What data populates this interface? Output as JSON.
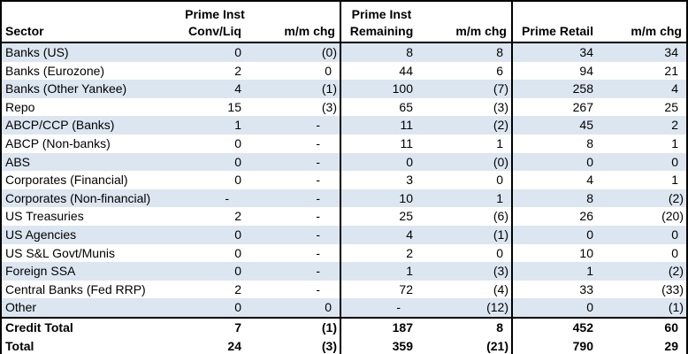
{
  "colors": {
    "row_stripe": "#dce6f1",
    "border": "#000000",
    "text": "#000000"
  },
  "table": {
    "columns": [
      {
        "line1": "",
        "line2": "Sector"
      },
      {
        "line1": "Prime Inst",
        "line2": "Conv/Liq"
      },
      {
        "line1": "",
        "line2": "m/m chg"
      },
      {
        "line1": "Prime Inst",
        "line2": "Remaining"
      },
      {
        "line1": "",
        "line2": "m/m chg"
      },
      {
        "line1": "",
        "line2": "Prime Retail"
      },
      {
        "line1": "",
        "line2": "m/m chg"
      }
    ],
    "rows": [
      {
        "sector": "Banks (US)",
        "values": [
          "0",
          "(0)",
          "8",
          "8",
          "34",
          "34"
        ]
      },
      {
        "sector": "Banks (Eurozone)",
        "values": [
          "2",
          "0",
          "44",
          "6",
          "94",
          "21"
        ]
      },
      {
        "sector": "Banks (Other Yankee)",
        "values": [
          "4",
          "(1)",
          "100",
          "(7)",
          "258",
          "4"
        ]
      },
      {
        "sector": "Repo",
        "values": [
          "15",
          "(3)",
          "65",
          "(3)",
          "267",
          "25"
        ]
      },
      {
        "sector": "ABCP/CCP (Banks)",
        "values": [
          "1",
          "-",
          "11",
          "(2)",
          "45",
          "2"
        ]
      },
      {
        "sector": "ABCP (Non-banks)",
        "values": [
          "0",
          "-",
          "11",
          "1",
          "8",
          "1"
        ]
      },
      {
        "sector": "ABS",
        "values": [
          "0",
          "-",
          "0",
          "(0)",
          "0",
          "0"
        ]
      },
      {
        "sector": "Corporates (Financial)",
        "values": [
          "0",
          "-",
          "3",
          "0",
          "4",
          "1"
        ]
      },
      {
        "sector": "Corporates (Non-financial)",
        "values": [
          "-",
          "-",
          "10",
          "1",
          "8",
          "(2)"
        ]
      },
      {
        "sector": "US Treasuries",
        "values": [
          "2",
          "-",
          "25",
          "(6)",
          "26",
          "(20)"
        ]
      },
      {
        "sector": "US Agencies",
        "values": [
          "0",
          "-",
          "4",
          "(1)",
          "0",
          "0"
        ]
      },
      {
        "sector": "US S&L Govt/Munis",
        "values": [
          "0",
          "-",
          "2",
          "0",
          "10",
          "0"
        ]
      },
      {
        "sector": "Foreign SSA",
        "values": [
          "0",
          "-",
          "1",
          "(3)",
          "1",
          "(2)"
        ]
      },
      {
        "sector": "Central Banks (Fed RRP)",
        "values": [
          "2",
          "-",
          "72",
          "(4)",
          "33",
          "(33)"
        ]
      },
      {
        "sector": "Other",
        "values": [
          "0",
          "0",
          "-",
          "(12)",
          "0",
          "(1)"
        ]
      }
    ],
    "total_rows": [
      {
        "sector": "Credit Total",
        "values": [
          "7",
          "(1)",
          "187",
          "8",
          "452",
          "60"
        ]
      },
      {
        "sector": "Total",
        "values": [
          "24",
          "(3)",
          "359",
          "(21)",
          "790",
          "29"
        ]
      }
    ]
  }
}
